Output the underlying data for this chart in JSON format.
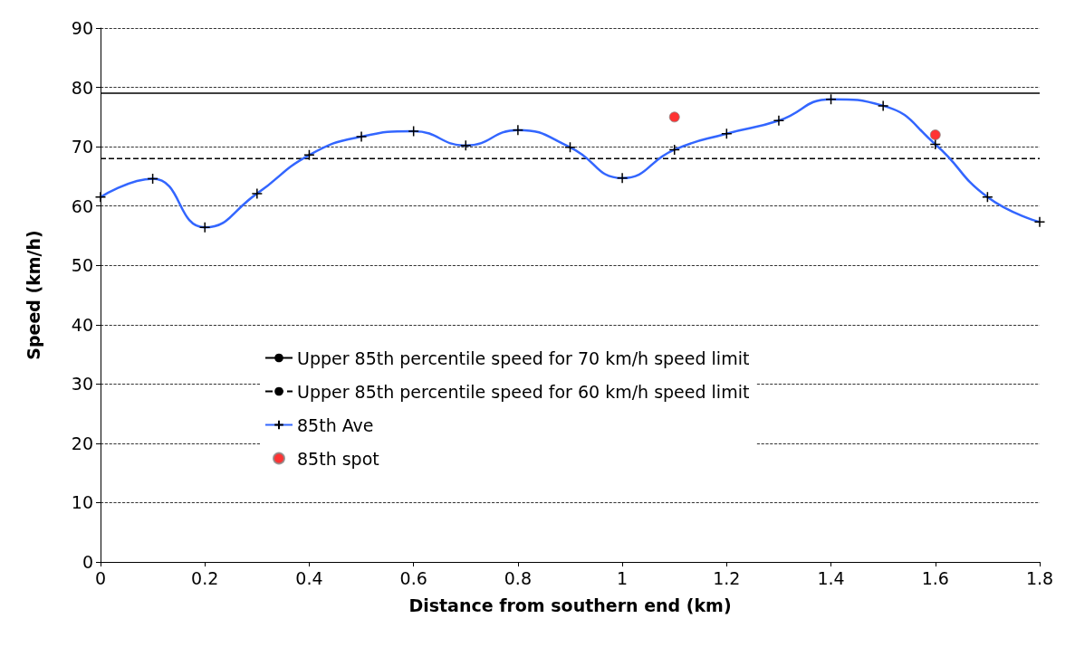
{
  "chart_data": {
    "type": "line",
    "xlabel": "Distance from southern end (km)",
    "ylabel": "Speed (km/h)",
    "xlim": [
      0,
      1.8
    ],
    "xticks": [
      0,
      0.2,
      0.4,
      0.6,
      0.8,
      1,
      1.2,
      1.4,
      1.6,
      1.8
    ],
    "ylim": [
      0,
      90
    ],
    "yticks": [
      0,
      10,
      20,
      30,
      40,
      50,
      60,
      70,
      80,
      90
    ],
    "grid": "y",
    "legend": "center",
    "ref_lines": [
      {
        "axis": "y",
        "value": 79,
        "label": "Upper 85th percentile speed for 70 km/h speed limit",
        "color": "#000000",
        "line_style": "solid"
      },
      {
        "axis": "y",
        "value": 68,
        "label": "Upper 85th percentile speed for 60 km/h speed limit",
        "color": "#000000",
        "line_style": "dashed"
      }
    ],
    "series": [
      {
        "name": "85th Ave",
        "type": "line",
        "color": "#3366ff",
        "marker": "cross",
        "x": [
          0,
          0.1,
          0.2,
          0.3,
          0.4,
          0.5,
          0.6,
          0.7,
          0.8,
          0.9,
          1,
          1.1,
          1.2,
          1.3,
          1.4,
          1.5,
          1.6,
          1.7,
          1.8
        ],
        "values": [
          61.5,
          64.6,
          56.4,
          62.1,
          68.6,
          71.7,
          72.6,
          70.2,
          72.8,
          69.9,
          64.7,
          69.5,
          72.2,
          74.4,
          78,
          76.9,
          70.4,
          61.5,
          57.3
        ]
      },
      {
        "name": "85th spot",
        "type": "scatter",
        "color": "#ff0000",
        "marker": "circle",
        "x": [
          1.1,
          1.6
        ],
        "values": [
          75,
          72
        ]
      }
    ]
  }
}
